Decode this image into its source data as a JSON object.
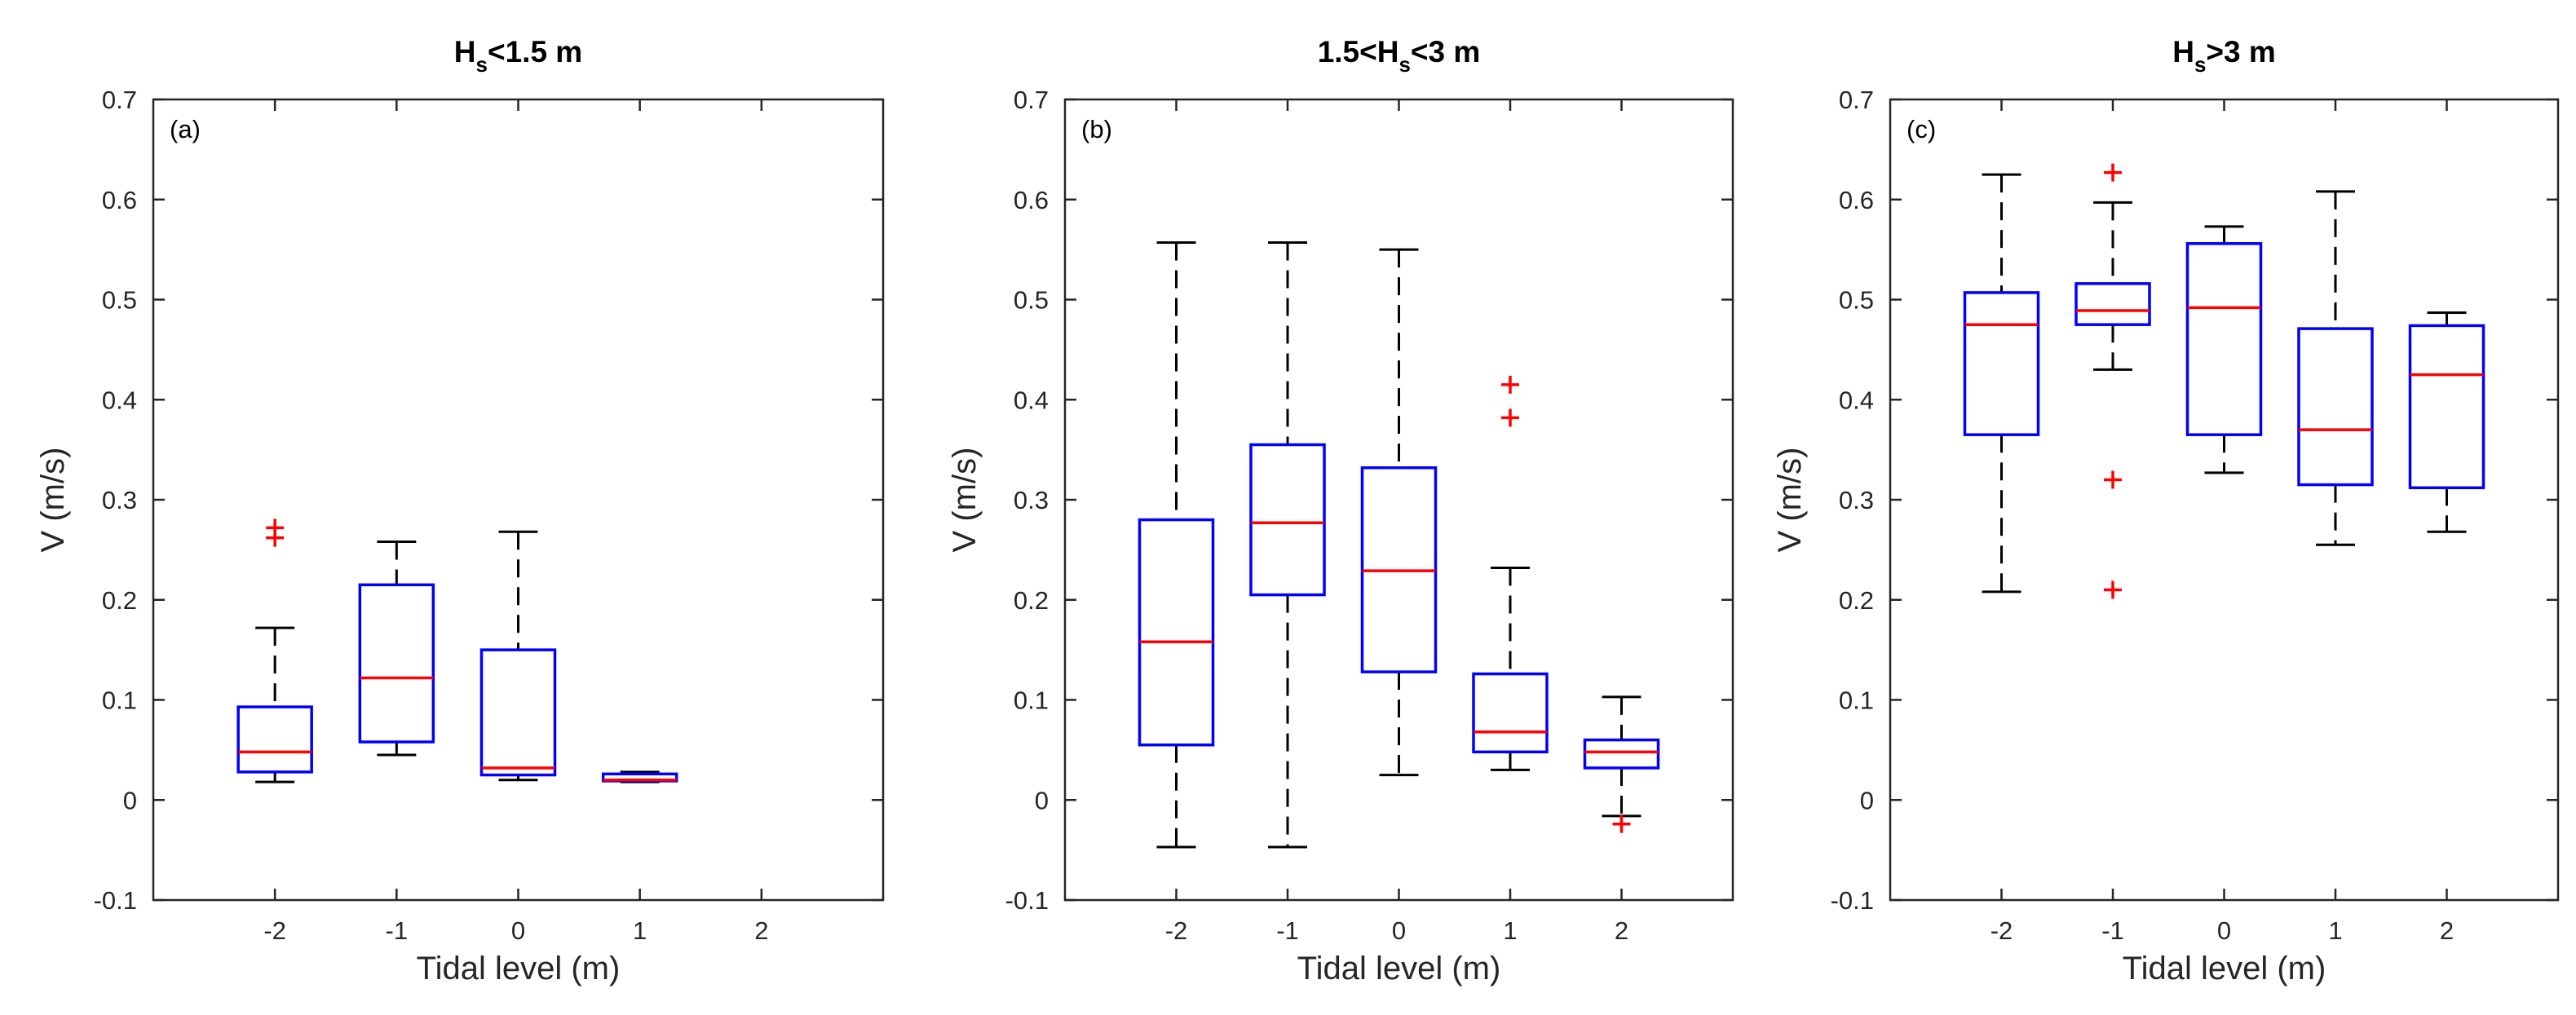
{
  "colors": {
    "box": "#0000ff",
    "median": "#ff0000",
    "whisker": "#000000",
    "outlier": "#ff0000",
    "axis": "#262626"
  },
  "chart_data": [
    {
      "type": "box",
      "panel_label": "(a)",
      "title": {
        "prefix": "H",
        "subscript": "s",
        "suffix": "<1.5 m"
      },
      "xlabel": "Tidal level (m)",
      "ylabel": "V (m/s)",
      "ylim": [
        -0.1,
        0.7
      ],
      "yticks": [
        "-0.1",
        "0",
        "0.1",
        "0.2",
        "0.3",
        "0.4",
        "0.5",
        "0.6",
        "0.7"
      ],
      "categories": [
        "-2",
        "-1",
        "0",
        "1",
        "2"
      ],
      "boxes": [
        {
          "x": "-2",
          "whisker_low": 0.018,
          "q1": 0.028,
          "median": 0.048,
          "q3": 0.093,
          "whisker_high": 0.172,
          "outliers": [
            0.262,
            0.272
          ]
        },
        {
          "x": "-1",
          "whisker_low": 0.045,
          "q1": 0.058,
          "median": 0.122,
          "q3": 0.215,
          "whisker_high": 0.258,
          "outliers": []
        },
        {
          "x": "0",
          "whisker_low": 0.02,
          "q1": 0.025,
          "median": 0.032,
          "q3": 0.15,
          "whisker_high": 0.268,
          "outliers": []
        },
        {
          "x": "1",
          "whisker_low": 0.018,
          "q1": 0.019,
          "median": 0.02,
          "q3": 0.026,
          "whisker_high": 0.028,
          "outliers": []
        }
      ]
    },
    {
      "type": "box",
      "panel_label": "(b)",
      "title": {
        "prefix": "1.5<H",
        "subscript": "s",
        "suffix": "<3 m"
      },
      "xlabel": "Tidal level (m)",
      "ylabel": "V (m/s)",
      "ylim": [
        -0.1,
        0.7
      ],
      "yticks": [
        "-0.1",
        "0",
        "0.1",
        "0.2",
        "0.3",
        "0.4",
        "0.5",
        "0.6",
        "0.7"
      ],
      "categories": [
        "-2",
        "-1",
        "0",
        "1",
        "2"
      ],
      "boxes": [
        {
          "x": "-2",
          "whisker_low": -0.047,
          "q1": 0.055,
          "median": 0.158,
          "q3": 0.28,
          "whisker_high": 0.557,
          "outliers": []
        },
        {
          "x": "-1",
          "whisker_low": -0.047,
          "q1": 0.205,
          "median": 0.277,
          "q3": 0.355,
          "whisker_high": 0.557,
          "outliers": []
        },
        {
          "x": "0",
          "whisker_low": 0.025,
          "q1": 0.128,
          "median": 0.229,
          "q3": 0.332,
          "whisker_high": 0.55,
          "outliers": []
        },
        {
          "x": "1",
          "whisker_low": 0.03,
          "q1": 0.048,
          "median": 0.068,
          "q3": 0.126,
          "whisker_high": 0.232,
          "outliers": [
            0.382,
            0.415
          ]
        },
        {
          "x": "2",
          "whisker_low": -0.016,
          "q1": 0.032,
          "median": 0.048,
          "q3": 0.06,
          "whisker_high": 0.103,
          "outliers": [
            -0.024
          ]
        }
      ]
    },
    {
      "type": "box",
      "panel_label": "(c)",
      "title": {
        "prefix": "H",
        "subscript": "s",
        "suffix": ">3 m"
      },
      "xlabel": "Tidal level (m)",
      "ylabel": "V (m/s)",
      "ylim": [
        -0.1,
        0.7
      ],
      "yticks": [
        "-0.1",
        "0",
        "0.1",
        "0.2",
        "0.3",
        "0.4",
        "0.5",
        "0.6",
        "0.7"
      ],
      "categories": [
        "-2",
        "-1",
        "0",
        "1",
        "2"
      ],
      "boxes": [
        {
          "x": "-2",
          "whisker_low": 0.208,
          "q1": 0.365,
          "median": 0.475,
          "q3": 0.507,
          "whisker_high": 0.625,
          "outliers": []
        },
        {
          "x": "-1",
          "whisker_low": 0.43,
          "q1": 0.475,
          "median": 0.489,
          "q3": 0.516,
          "whisker_high": 0.597,
          "outliers": [
            0.21,
            0.32,
            0.627
          ]
        },
        {
          "x": "0",
          "whisker_low": 0.327,
          "q1": 0.365,
          "median": 0.492,
          "q3": 0.556,
          "whisker_high": 0.573,
          "outliers": []
        },
        {
          "x": "1",
          "whisker_low": 0.255,
          "q1": 0.315,
          "median": 0.37,
          "q3": 0.471,
          "whisker_high": 0.608,
          "outliers": []
        },
        {
          "x": "2",
          "whisker_low": 0.268,
          "q1": 0.312,
          "median": 0.425,
          "q3": 0.474,
          "whisker_high": 0.487,
          "outliers": []
        }
      ]
    }
  ]
}
